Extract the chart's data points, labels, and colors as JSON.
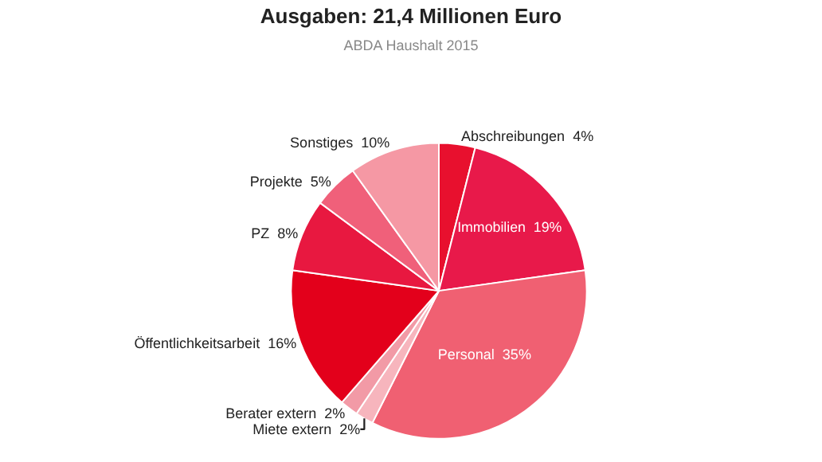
{
  "chart_data": {
    "type": "pie",
    "title": "Ausgaben: 21,4 Millionen Euro",
    "subtitle": "ABDA Haushalt 2015",
    "categories": [
      "Abschreibungen",
      "Immobilien",
      "Personal",
      "Miete extern",
      "Berater extern",
      "Öffentlichkeitsarbeit",
      "PZ",
      "Projekte",
      "Sonstiges"
    ],
    "values": [
      4,
      19,
      35,
      2,
      2,
      16,
      8,
      5,
      10
    ],
    "value_labels": [
      "4%",
      "19%",
      "35%",
      "2%",
      "2%",
      "16%",
      "8%",
      "5%",
      "10%"
    ],
    "colors": [
      "#e8102e",
      "#e8194a",
      "#f06072",
      "#f7b5bd",
      "#f29aa6",
      "#e3001b",
      "#e81840",
      "#f0607a",
      "#f598a4"
    ],
    "legend": false
  }
}
